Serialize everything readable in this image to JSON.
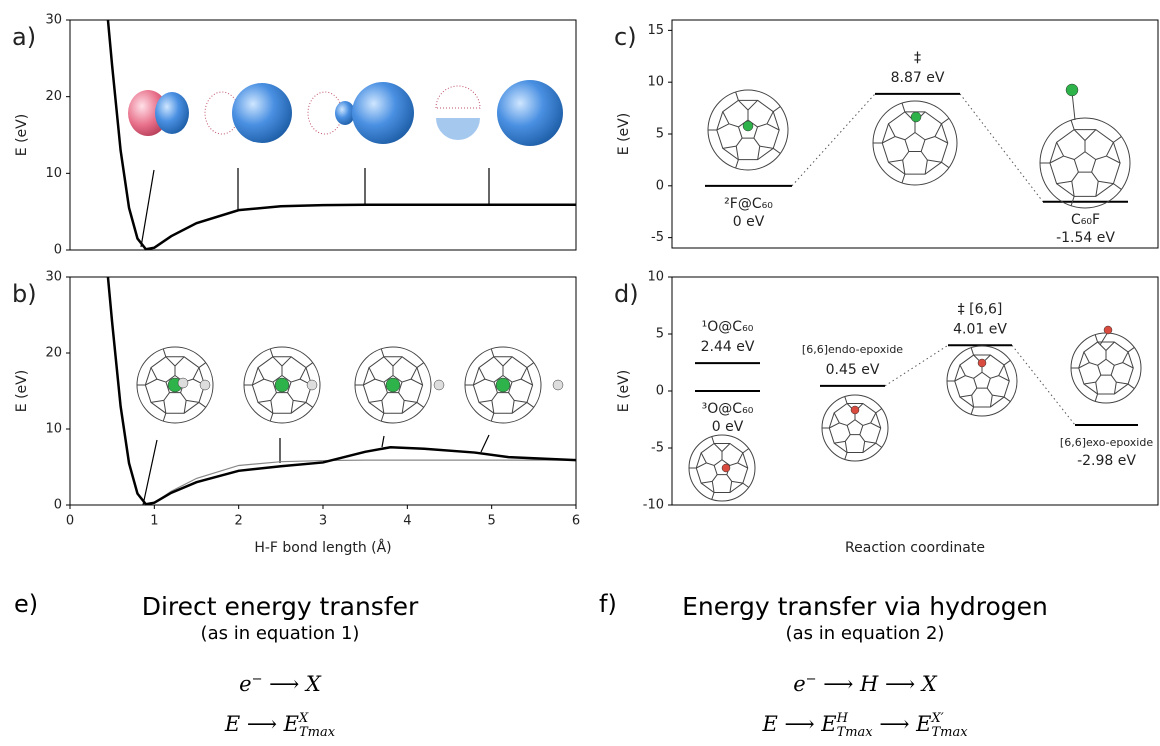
{
  "chart_data": [
    {
      "type": "line",
      "panel_label": "a)",
      "ylabel": "E (eV)",
      "xlim": [
        0,
        6
      ],
      "ylim": [
        0,
        30
      ],
      "yticks": [
        0,
        10,
        20,
        30
      ],
      "x": [
        0.45,
        0.5,
        0.6,
        0.7,
        0.8,
        0.9,
        1.0,
        1.2,
        1.5,
        2.0,
        2.5,
        3.0,
        3.5,
        3.8,
        4.2,
        4.8,
        5.2,
        6.0
      ],
      "series": [
        {
          "color": "#000000",
          "values": [
            30,
            24,
            13,
            5.5,
            1.5,
            0.1,
            0.3,
            1.8,
            3.5,
            5.2,
            5.7,
            5.85,
            5.9,
            5.9,
            5.9,
            5.9,
            5.9,
            5.9
          ]
        }
      ]
    },
    {
      "type": "line",
      "panel_label": "b)",
      "ylabel": "E (eV)",
      "xlabel": "H-F bond length (Å)",
      "xlim": [
        0,
        6
      ],
      "ylim": [
        0,
        30
      ],
      "xticks": [
        0,
        1,
        2,
        3,
        4,
        5,
        6
      ],
      "yticks": [
        0,
        10,
        20,
        30
      ],
      "x": [
        0.45,
        0.5,
        0.6,
        0.7,
        0.8,
        0.9,
        1.0,
        1.2,
        1.5,
        2.0,
        2.5,
        3.0,
        3.5,
        3.8,
        4.2,
        4.8,
        5.2,
        6.0
      ],
      "series": [
        {
          "color": "#888888",
          "values": [
            30,
            24,
            13,
            5.5,
            1.5,
            0.1,
            0.3,
            1.8,
            3.5,
            5.2,
            5.7,
            5.85,
            5.9,
            5.9,
            5.9,
            5.9,
            5.9,
            5.9
          ]
        },
        {
          "color": "#000000",
          "values": [
            30,
            24,
            13,
            5.5,
            1.5,
            0.1,
            0.3,
            1.6,
            3.0,
            4.5,
            5.1,
            5.6,
            7.0,
            7.6,
            7.4,
            6.9,
            6.3,
            5.9
          ]
        }
      ]
    },
    {
      "type": "level",
      "panel_label": "c)",
      "ylabel": "E (eV)",
      "ylim": [
        -6,
        16
      ],
      "yticks": [
        -5,
        0,
        5,
        10,
        15
      ],
      "categories": [
        "²F@C₆₀",
        "‡",
        "C₆₀F"
      ],
      "values": [
        0,
        8.87,
        -1.54
      ],
      "value_labels": [
        "0 eV",
        "8.87 eV",
        "-1.54 eV"
      ]
    },
    {
      "type": "level",
      "panel_label": "d)",
      "ylabel": "E (eV)",
      "xlabel": "Reaction coordinate",
      "ylim": [
        -10,
        10
      ],
      "yticks": [
        -10,
        -5,
        0,
        5,
        10
      ],
      "categories": [
        "¹O@C₆₀",
        "³O@C₆₀",
        "[6,6]endo-epoxide",
        "‡ [6,6]",
        "[6,6]exo-epoxide"
      ],
      "values": [
        2.44,
        0,
        0.45,
        4.01,
        -2.98
      ],
      "value_labels": [
        "2.44 eV",
        "0 eV",
        "0.45 eV",
        "4.01 eV",
        "-2.98 eV"
      ]
    }
  ],
  "text_panels": [
    {
      "label": "e)",
      "title": "Direct energy transfer",
      "subtitle": "(as in equation 1)",
      "equations": [
        [
          {
            "text": "e"
          },
          {
            "sup": "−"
          },
          {
            "text": " ⟶ X"
          }
        ],
        [
          {
            "text": "E ⟶ E"
          },
          {
            "sup": "X",
            "sub": "Tmax"
          }
        ]
      ]
    },
    {
      "label": "f)",
      "title": "Energy transfer via hydrogen",
      "subtitle": "(as in equation 2)",
      "equations": [
        [
          {
            "text": "e"
          },
          {
            "sup": "−"
          },
          {
            "text": " ⟶ H ⟶ X"
          }
        ],
        [
          {
            "text": "E ⟶ E"
          },
          {
            "sup": "H",
            "sub": "Tmax"
          },
          {
            "text": " ⟶ E"
          },
          {
            "sup": "X′",
            "sub": "Tmax"
          }
        ]
      ]
    }
  ]
}
